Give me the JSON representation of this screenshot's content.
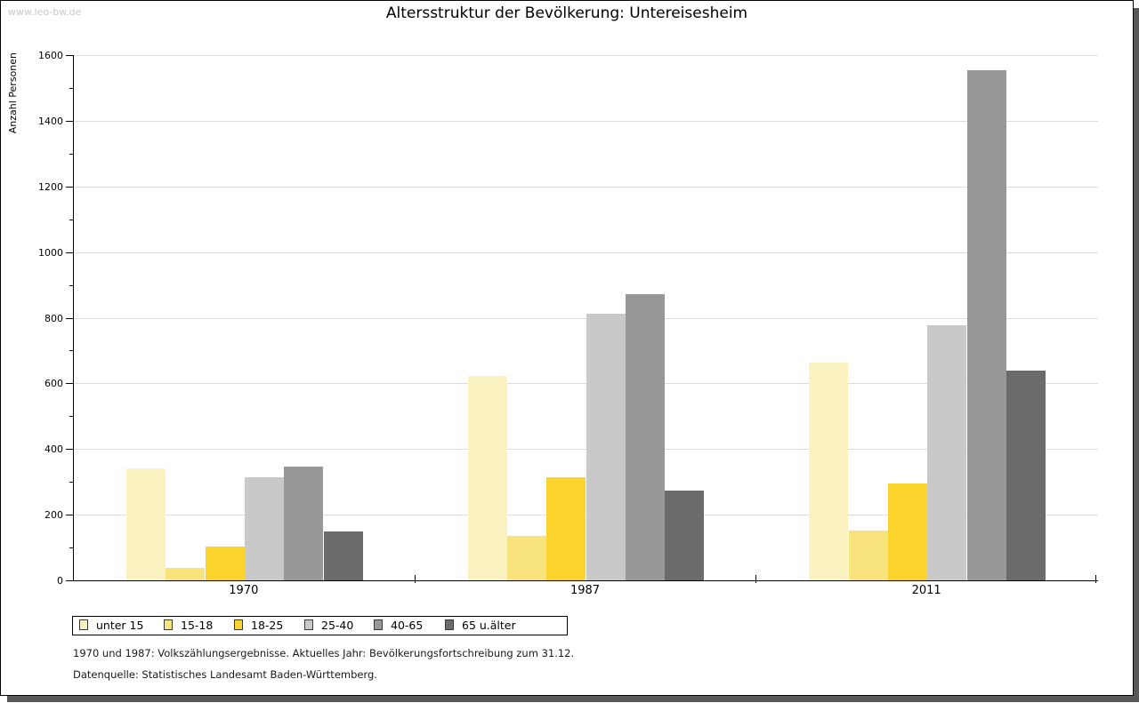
{
  "watermark": "www.leo-bw.de",
  "title": "Altersstruktur der Bevölkerung: Untereisesheim",
  "chart_data": {
    "type": "bar",
    "title": "Altersstruktur der Bevölkerung: Untereisesheim",
    "xlabel": "",
    "ylabel": "Anzahl Personen",
    "ylim": [
      0,
      1600
    ],
    "ytick_major_step": 200,
    "ytick_minor_step": 100,
    "grid": "horizontal-major-only",
    "legend_position": "bottom-left",
    "categories": [
      "1970",
      "1987",
      "2011"
    ],
    "series": [
      {
        "name": "unter 15",
        "color": "#fbf2c1",
        "values": [
          340,
          622,
          663
        ]
      },
      {
        "name": "15-18",
        "color": "#f9e37d",
        "values": [
          38,
          135,
          152
        ]
      },
      {
        "name": "18-25",
        "color": "#fbd32d",
        "values": [
          103,
          315,
          295
        ]
      },
      {
        "name": "25-40",
        "color": "#c9c9c9",
        "values": [
          313,
          812,
          776
        ]
      },
      {
        "name": "40-65",
        "color": "#989898",
        "values": [
          346,
          873,
          1553
        ]
      },
      {
        "name": "65 u.älter",
        "color": "#6b6b6b",
        "values": [
          149,
          273,
          638
        ]
      }
    ]
  },
  "footer": {
    "line1": "1970 und 1987: Volkszählungsergebnisse. Aktuelles Jahr: Bevölkerungsfortschreibung zum 31.12.",
    "line2": "Datenquelle: Statistisches Landesamt Baden-Württemberg."
  }
}
